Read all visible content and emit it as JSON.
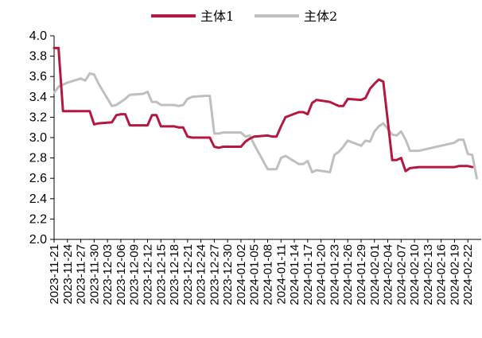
{
  "chart_data": {
    "type": "line",
    "title": "",
    "xlabel": "",
    "ylabel": "",
    "ylim": [
      2.0,
      4.0
    ],
    "yticks": [
      "4.0",
      "3.8",
      "3.6",
      "3.4",
      "3.2",
      "3.0",
      "2.8",
      "2.6",
      "2.4",
      "2.2",
      "2.0"
    ],
    "grid": false,
    "legend_position": "top-center",
    "x_tick_labels": [
      "2023-11-21",
      "2023-11-24",
      "2023-11-27",
      "2023-11-30",
      "2023-12-03",
      "2023-12-06",
      "2023-12-09",
      "2023-12-12",
      "2023-12-15",
      "2023-12-18",
      "2023-12-21",
      "2023-12-24",
      "2023-12-27",
      "2023-12-30",
      "2024-01-02",
      "2024-01-05",
      "2024-01-08",
      "2024-01-11",
      "2024-01-14",
      "2024-01-17",
      "2024-01-20",
      "2024-01-23",
      "2024-01-26",
      "2024-01-29",
      "2024-02-01",
      "2024-02-04",
      "2024-02-07",
      "2024-02-10",
      "2024-02-13",
      "2024-02-16",
      "2024-02-19",
      "2024-02-22"
    ],
    "series": [
      {
        "name": "主体1",
        "color": "#b5173f",
        "points": [
          [
            "2023-11-21",
            3.88
          ],
          [
            "2023-11-22",
            3.88
          ],
          [
            "2023-11-23",
            3.26
          ],
          [
            "2023-11-24",
            3.26
          ],
          [
            "2023-11-27",
            3.26
          ],
          [
            "2023-11-28",
            3.26
          ],
          [
            "2023-11-29",
            3.26
          ],
          [
            "2023-11-30",
            3.13
          ],
          [
            "2023-12-01",
            3.14
          ],
          [
            "2023-12-04",
            3.15
          ],
          [
            "2023-12-05",
            3.22
          ],
          [
            "2023-12-06",
            3.23
          ],
          [
            "2023-12-07",
            3.23
          ],
          [
            "2023-12-08",
            3.12
          ],
          [
            "2023-12-11",
            3.12
          ],
          [
            "2023-12-12",
            3.12
          ],
          [
            "2023-12-13",
            3.22
          ],
          [
            "2023-12-14",
            3.22
          ],
          [
            "2023-12-15",
            3.11
          ],
          [
            "2023-12-18",
            3.11
          ],
          [
            "2023-12-19",
            3.1
          ],
          [
            "2023-12-20",
            3.1
          ],
          [
            "2023-12-21",
            3.01
          ],
          [
            "2023-12-22",
            3.0
          ],
          [
            "2023-12-25",
            3.0
          ],
          [
            "2023-12-26",
            3.0
          ],
          [
            "2023-12-27",
            2.91
          ],
          [
            "2023-12-28",
            2.9
          ],
          [
            "2023-12-29",
            2.91
          ],
          [
            "2024-01-02",
            2.91
          ],
          [
            "2024-01-03",
            2.96
          ],
          [
            "2024-01-04",
            2.99
          ],
          [
            "2024-01-05",
            3.01
          ],
          [
            "2024-01-08",
            3.02
          ],
          [
            "2024-01-09",
            3.01
          ],
          [
            "2024-01-10",
            3.01
          ],
          [
            "2024-01-11",
            3.11
          ],
          [
            "2024-01-12",
            3.2
          ],
          [
            "2024-01-15",
            3.25
          ],
          [
            "2024-01-16",
            3.25
          ],
          [
            "2024-01-17",
            3.23
          ],
          [
            "2024-01-18",
            3.34
          ],
          [
            "2024-01-19",
            3.37
          ],
          [
            "2024-01-22",
            3.35
          ],
          [
            "2024-01-23",
            3.33
          ],
          [
            "2024-01-24",
            3.31
          ],
          [
            "2024-01-25",
            3.31
          ],
          [
            "2024-01-26",
            3.38
          ],
          [
            "2024-01-29",
            3.37
          ],
          [
            "2024-01-30",
            3.39
          ],
          [
            "2024-01-31",
            3.48
          ],
          [
            "2024-02-01",
            3.53
          ],
          [
            "2024-02-02",
            3.57
          ],
          [
            "2024-02-03",
            3.55
          ],
          [
            "2024-02-05",
            2.78
          ],
          [
            "2024-02-06",
            2.78
          ],
          [
            "2024-02-07",
            2.8
          ],
          [
            "2024-02-08",
            2.67
          ],
          [
            "2024-02-09",
            2.7
          ],
          [
            "2024-02-11",
            2.71
          ],
          [
            "2024-02-19",
            2.71
          ],
          [
            "2024-02-20",
            2.72
          ],
          [
            "2024-02-22",
            2.72
          ],
          [
            "2024-02-23",
            2.71
          ]
        ]
      },
      {
        "name": "主体2",
        "color": "#bfbfbf",
        "points": [
          [
            "2023-11-21",
            3.44
          ],
          [
            "2023-11-22",
            3.5
          ],
          [
            "2023-11-23",
            3.52
          ],
          [
            "2023-11-24",
            3.54
          ],
          [
            "2023-11-27",
            3.58
          ],
          [
            "2023-11-28",
            3.56
          ],
          [
            "2023-11-29",
            3.63
          ],
          [
            "2023-11-30",
            3.62
          ],
          [
            "2023-12-01",
            3.53
          ],
          [
            "2023-12-04",
            3.31
          ],
          [
            "2023-12-05",
            3.32
          ],
          [
            "2023-12-06",
            3.35
          ],
          [
            "2023-12-07",
            3.38
          ],
          [
            "2023-12-08",
            3.42
          ],
          [
            "2023-12-11",
            3.43
          ],
          [
            "2023-12-12",
            3.45
          ],
          [
            "2023-12-13",
            3.35
          ],
          [
            "2023-12-14",
            3.35
          ],
          [
            "2023-12-15",
            3.32
          ],
          [
            "2023-12-18",
            3.32
          ],
          [
            "2023-12-19",
            3.31
          ],
          [
            "2023-12-20",
            3.32
          ],
          [
            "2023-12-21",
            3.38
          ],
          [
            "2023-12-22",
            3.4
          ],
          [
            "2023-12-25",
            3.41
          ],
          [
            "2023-12-26",
            3.41
          ],
          [
            "2023-12-27",
            3.04
          ],
          [
            "2023-12-28",
            3.04
          ],
          [
            "2023-12-29",
            3.05
          ],
          [
            "2024-01-02",
            3.05
          ],
          [
            "2024-01-03",
            3.01
          ],
          [
            "2024-01-04",
            3.02
          ],
          [
            "2024-01-05",
            2.93
          ],
          [
            "2024-01-08",
            2.69
          ],
          [
            "2024-01-09",
            2.69
          ],
          [
            "2024-01-10",
            2.69
          ],
          [
            "2024-01-11",
            2.8
          ],
          [
            "2024-01-12",
            2.82
          ],
          [
            "2024-01-15",
            2.74
          ],
          [
            "2024-01-16",
            2.74
          ],
          [
            "2024-01-17",
            2.77
          ],
          [
            "2024-01-18",
            2.66
          ],
          [
            "2024-01-19",
            2.68
          ],
          [
            "2024-01-22",
            2.66
          ],
          [
            "2024-01-23",
            2.83
          ],
          [
            "2024-01-24",
            2.86
          ],
          [
            "2024-01-25",
            2.91
          ],
          [
            "2024-01-26",
            2.97
          ],
          [
            "2024-01-29",
            2.92
          ],
          [
            "2024-01-30",
            2.97
          ],
          [
            "2024-01-31",
            2.96
          ],
          [
            "2024-02-01",
            3.06
          ],
          [
            "2024-02-02",
            3.11
          ],
          [
            "2024-02-03",
            3.14
          ],
          [
            "2024-02-05",
            3.03
          ],
          [
            "2024-02-06",
            3.02
          ],
          [
            "2024-02-07",
            3.06
          ],
          [
            "2024-02-08",
            2.98
          ],
          [
            "2024-02-09",
            2.87
          ],
          [
            "2024-02-11",
            2.87
          ],
          [
            "2024-02-19",
            2.95
          ],
          [
            "2024-02-20",
            2.98
          ],
          [
            "2024-02-21",
            2.98
          ],
          [
            "2024-02-22",
            2.84
          ],
          [
            "2024-02-23",
            2.83
          ],
          [
            "2024-02-24",
            2.6
          ]
        ]
      }
    ]
  }
}
